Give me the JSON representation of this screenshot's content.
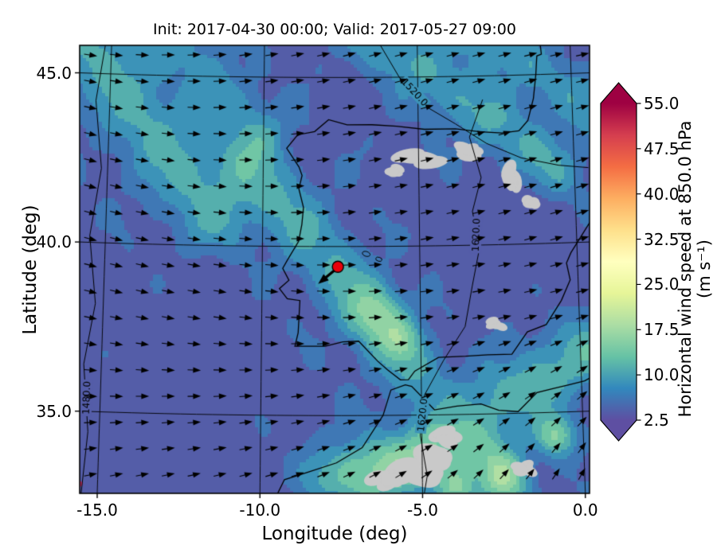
{
  "chart_data": {
    "type": "heatmap",
    "subtype": "filled-contour map with wind quiver overlay",
    "title": "Init: 2017-04-30 00:00; Valid: 2017-05-27 09:00",
    "init_time": "2017-04-30 00:00",
    "valid_time": "2017-05-27 09:00",
    "xlabel": "Longitude (deg)",
    "ylabel": "Latitude (deg)",
    "xlim": [
      -15.8,
      0.4
    ],
    "ylim": [
      32.7,
      46.0
    ],
    "x_ticks": [
      -15.0,
      -10.0,
      -5.0,
      0.0
    ],
    "x_tick_labels": [
      "-15.0",
      "-10.0",
      "-5.0",
      "0.0"
    ],
    "y_ticks": [
      35.0,
      40.0,
      45.0
    ],
    "y_tick_labels": [
      "35.0",
      "40.0",
      "45.0"
    ],
    "grid": true,
    "projection": "lambert-conformal-like graticule",
    "field": "Horizontal wind speed at 850.0 hPa",
    "units": "m s⁻¹",
    "colorbar": {
      "label": "Horizontal wind speed at 850.0 hPa (m s⁻¹)",
      "ticks": [
        2.5,
        10.0,
        17.5,
        25.0,
        32.5,
        40.0,
        47.5,
        55.0
      ],
      "tick_labels": [
        "2.5",
        "10.0",
        "17.5",
        "25.0",
        "32.5",
        "40.0",
        "47.5",
        "55.0"
      ],
      "vmin": 2.5,
      "vmax": 55.0,
      "extend": "both",
      "colormap": "Spectral_r",
      "colors": [
        "#5e4fa2",
        "#3288bd",
        "#66c2a5",
        "#abdda4",
        "#e6f598",
        "#ffffbf",
        "#fee08b",
        "#fdae61",
        "#f46d43",
        "#d53e4f",
        "#9e0142"
      ]
    },
    "contour_overlay": {
      "field": "geopotential height",
      "labels": [
        "1480.0",
        "1520.0",
        "1620.0",
        "1620.0"
      ]
    },
    "marker": {
      "lon": -7.6,
      "lat": 39.4,
      "color": "#e8000b",
      "edge": "#000000"
    },
    "mask_color": "#c9c9c9",
    "overlays": [
      "wind quiver arrows",
      "geopotential height contours",
      "coastlines",
      "graticule",
      "terrain mask (gray)"
    ]
  }
}
